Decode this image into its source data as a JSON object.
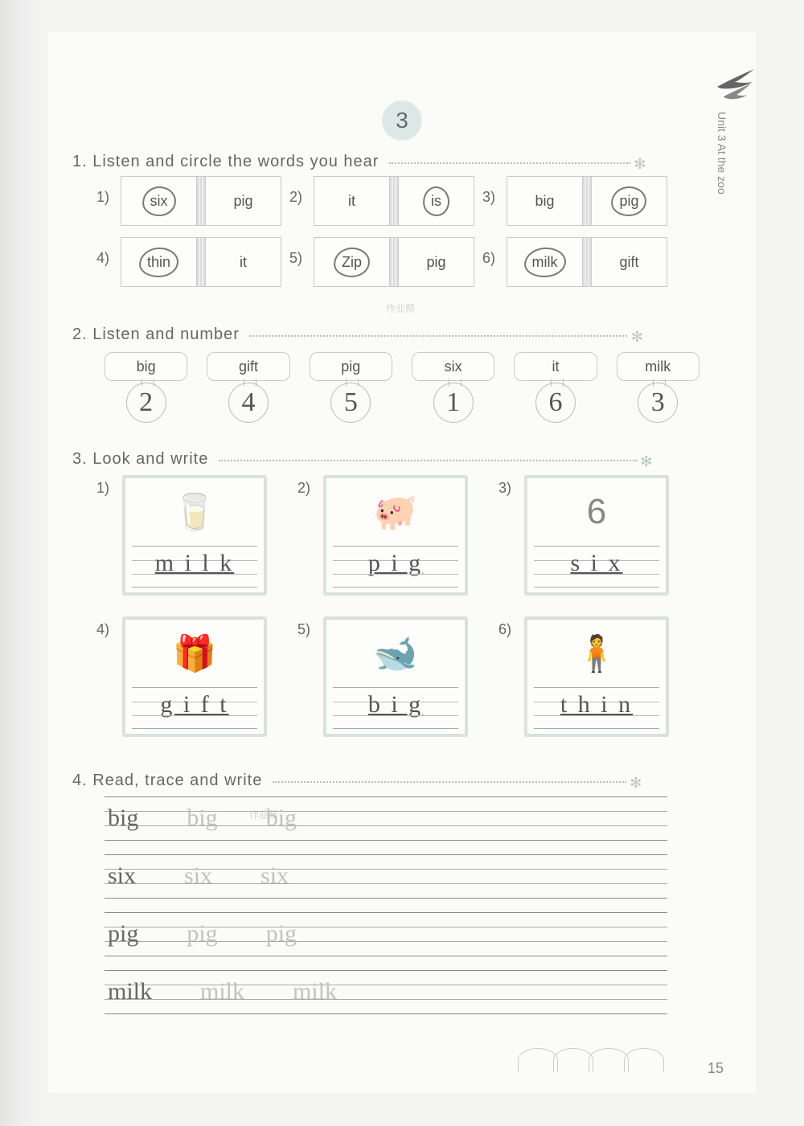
{
  "page": {
    "top_number": "3",
    "bottom_number": "15",
    "side_label": "Unit 3 At the zoo"
  },
  "section1": {
    "title": "1. Listen and circle the words you hear",
    "items": [
      {
        "num": "1)",
        "left": "six",
        "right": "pig",
        "left_circled": true,
        "right_circled": false
      },
      {
        "num": "2)",
        "left": "it",
        "right": "is",
        "left_circled": false,
        "right_circled": true
      },
      {
        "num": "3)",
        "left": "big",
        "right": "pig",
        "left_circled": false,
        "right_circled": true
      },
      {
        "num": "4)",
        "left": "thin",
        "right": "it",
        "left_circled": true,
        "right_circled": false
      },
      {
        "num": "5)",
        "left": "Zip",
        "right": "pig",
        "left_circled": true,
        "right_circled": false
      },
      {
        "num": "6)",
        "left": "milk",
        "right": "gift",
        "left_circled": true,
        "right_circled": false
      }
    ]
  },
  "section2": {
    "title": "2. Listen and number",
    "items": [
      {
        "word": "big",
        "answer": "2"
      },
      {
        "word": "gift",
        "answer": "4"
      },
      {
        "word": "pig",
        "answer": "5"
      },
      {
        "word": "six",
        "answer": "1"
      },
      {
        "word": "it",
        "answer": "6"
      },
      {
        "word": "milk",
        "answer": "3"
      }
    ]
  },
  "section3": {
    "title": "3. Look and write",
    "items": [
      {
        "num": "1)",
        "icon": "🥛",
        "answer": "m i l k"
      },
      {
        "num": "2)",
        "icon": "🐖",
        "answer": "p i g"
      },
      {
        "num": "3)",
        "icon": "6",
        "answer": "s i x"
      },
      {
        "num": "4)",
        "icon": "🎁",
        "answer": "g i f t"
      },
      {
        "num": "5)",
        "icon": "🐋",
        "answer": "b i g"
      },
      {
        "num": "6)",
        "icon": "🧍",
        "answer": "t h i n"
      }
    ]
  },
  "section4": {
    "title": "4. Read, trace and write",
    "lines": [
      {
        "main": "big",
        "trace1": "big",
        "trace2": "big"
      },
      {
        "main": "six",
        "trace1": "six",
        "trace2": "six"
      },
      {
        "main": "pig",
        "trace1": "pig",
        "trace2": "pig"
      },
      {
        "main": "milk",
        "trace1": "milk",
        "trace2": "milk"
      }
    ]
  },
  "watermarks": {
    "wm1": "作业帮",
    "wm2": "作业帮"
  },
  "styling": {
    "background": "#f4f4f2",
    "paper_bg": "#fbfbf9",
    "text_color": "#666666",
    "border_color": "#c9c9c9",
    "accent_border": "#d8e2df",
    "handwriting_font": "Brush Script MT",
    "title_fontsize": 20,
    "body_fontsize": 18,
    "handwriting_fontsize": 30
  }
}
